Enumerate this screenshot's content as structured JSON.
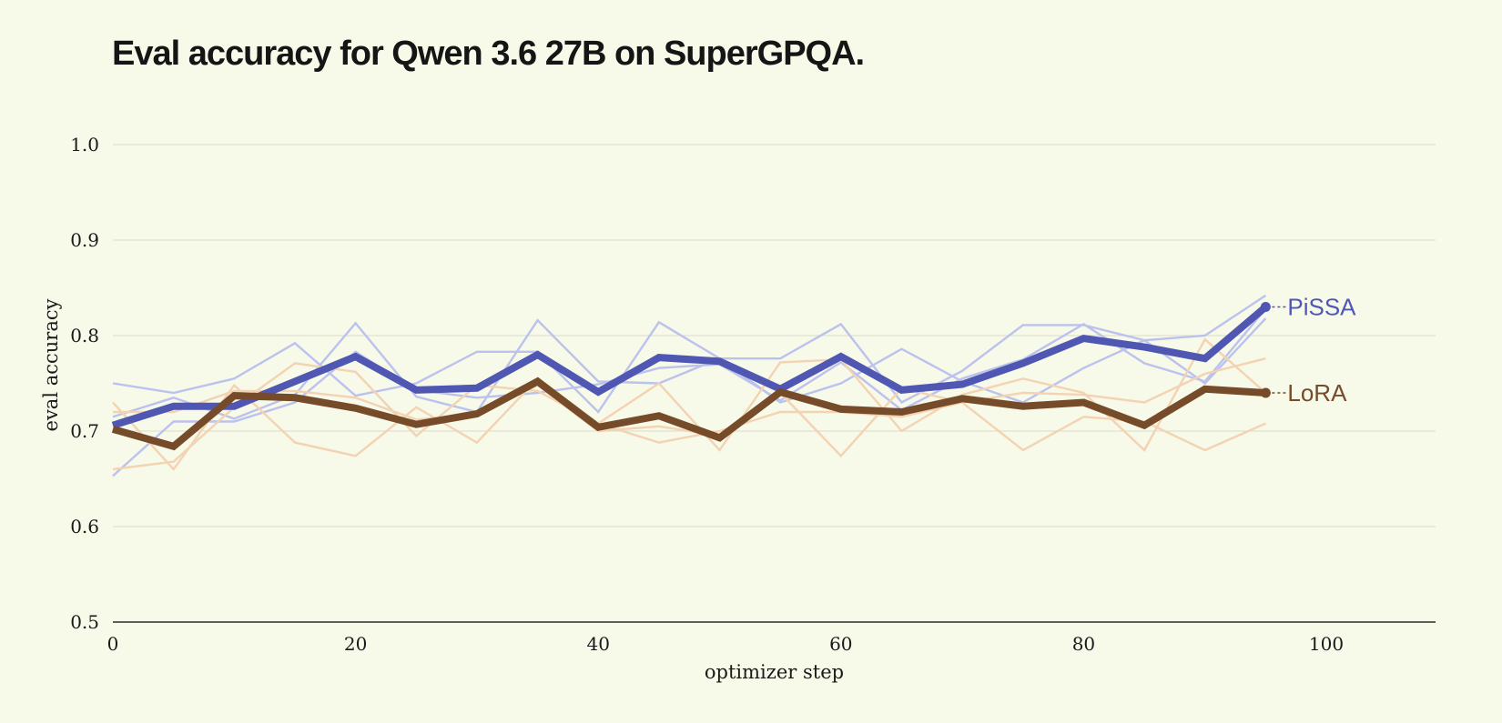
{
  "chart_data": {
    "type": "line",
    "title": "Eval accuracy for Qwen 3.6 27B on SuperGPQA.",
    "xlabel": "optimizer step",
    "ylabel": "eval accuracy",
    "xlim": [
      0,
      109
    ],
    "ylim": [
      0.5,
      1.0
    ],
    "x_ticks": [
      0,
      20,
      40,
      60,
      80,
      100
    ],
    "y_ticks": [
      0.5,
      0.6,
      0.7,
      0.8,
      0.9,
      1.0
    ],
    "y_tick_labels": [
      "0.5",
      "0.6",
      "0.7",
      "0.8",
      "0.9",
      "1.0"
    ],
    "grid": "horizontal",
    "x": [
      0,
      5,
      10,
      15,
      20,
      25,
      30,
      35,
      40,
      45,
      50,
      55,
      60,
      65,
      70,
      75,
      80,
      85,
      90,
      95
    ],
    "series": [
      {
        "name": "PiSSA",
        "role": "mean",
        "color": "#4f57b3",
        "values": [
          0.706,
          0.726,
          0.726,
          0.752,
          0.778,
          0.743,
          0.745,
          0.78,
          0.741,
          0.777,
          0.773,
          0.744,
          0.778,
          0.743,
          0.749,
          0.771,
          0.797,
          0.788,
          0.776,
          0.83
        ]
      },
      {
        "name": "LoRA",
        "role": "mean",
        "color": "#764b2a",
        "values": [
          0.702,
          0.684,
          0.737,
          0.735,
          0.724,
          0.707,
          0.718,
          0.752,
          0.704,
          0.716,
          0.693,
          0.741,
          0.723,
          0.72,
          0.734,
          0.726,
          0.73,
          0.706,
          0.744,
          0.74
        ]
      },
      {
        "role": "run",
        "group": "PiSSA",
        "color": "#bcc2ee",
        "values": [
          0.75,
          0.74,
          0.755,
          0.792,
          0.737,
          0.75,
          0.783,
          0.783,
          0.72,
          0.814,
          0.776,
          0.776,
          0.812,
          0.73,
          0.763,
          0.811,
          0.811,
          0.795,
          0.8,
          0.842
        ]
      },
      {
        "role": "run",
        "group": "PiSSA",
        "color": "#bcc2ee",
        "values": [
          0.715,
          0.735,
          0.713,
          0.738,
          0.813,
          0.736,
          0.72,
          0.816,
          0.752,
          0.75,
          0.776,
          0.73,
          0.75,
          0.786,
          0.752,
          0.73,
          0.766,
          0.795,
          0.75,
          0.818
        ]
      },
      {
        "role": "run",
        "group": "PiSSA",
        "color": "#bcc2ee",
        "values": [
          0.653,
          0.71,
          0.71,
          0.73,
          0.783,
          0.743,
          0.735,
          0.74,
          0.749,
          0.766,
          0.77,
          0.732,
          0.772,
          0.722,
          0.755,
          0.775,
          0.812,
          0.771,
          0.752,
          0.828
        ]
      },
      {
        "role": "run",
        "group": "LoRA",
        "color": "#f3d3b1",
        "values": [
          0.73,
          0.66,
          0.748,
          0.688,
          0.674,
          0.725,
          0.688,
          0.755,
          0.708,
          0.75,
          0.68,
          0.772,
          0.775,
          0.7,
          0.738,
          0.755,
          0.74,
          0.68,
          0.796,
          0.74
        ]
      },
      {
        "role": "run",
        "group": "LoRA",
        "color": "#f3d3b1",
        "values": [
          0.66,
          0.668,
          0.725,
          0.771,
          0.762,
          0.695,
          0.748,
          0.742,
          0.708,
          0.688,
          0.7,
          0.72,
          0.72,
          0.715,
          0.73,
          0.68,
          0.715,
          0.71,
          0.68,
          0.708
        ]
      },
      {
        "role": "run",
        "group": "LoRA",
        "color": "#f3d3b1",
        "values": [
          0.72,
          0.72,
          0.742,
          0.742,
          0.735,
          0.712,
          0.718,
          0.748,
          0.7,
          0.705,
          0.695,
          0.74,
          0.674,
          0.745,
          0.73,
          0.74,
          0.738,
          0.73,
          0.76,
          0.776
        ]
      }
    ],
    "end_labels": [
      {
        "text": "PiSSA",
        "series": "PiSSA",
        "color": "#4f57b3"
      },
      {
        "text": "LoRA",
        "series": "LoRA",
        "color": "#764b2a"
      }
    ]
  }
}
